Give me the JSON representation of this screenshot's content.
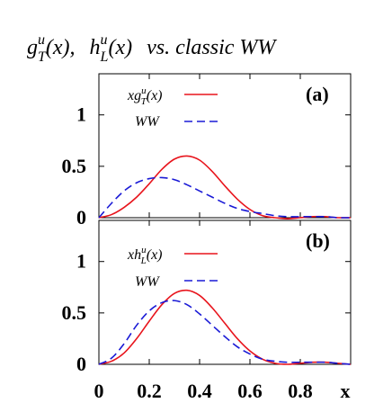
{
  "title": {
    "part1_base": "g",
    "part1_sup": "u",
    "part1_sub": "T",
    "part1_arg": "(x),",
    "part2_base": "h",
    "part2_sup": "u",
    "part2_sub": "L",
    "part2_arg": "(x)",
    "rest": "vs.  classic WW"
  },
  "colors": {
    "model": "#e8141c",
    "ww": "#1a1ad6",
    "axis": "#000000"
  },
  "chart_data": [
    {
      "type": "line",
      "panel_label": "(a)",
      "xlabel": "x",
      "xlim": [
        0,
        1.0
      ],
      "ylim": [
        0,
        1.4
      ],
      "x_ticks": [
        "0",
        "0.2",
        "0.4",
        "0.6",
        "0.8",
        "x"
      ],
      "y_ticks": [
        "0",
        "0.5",
        "1"
      ],
      "legend": {
        "position": "top-left"
      },
      "series": [
        {
          "name": "xg_T^u(x)",
          "legend_base": "xg",
          "legend_sup": "u",
          "legend_sub": "T",
          "legend_arg": "(x)",
          "color": "model",
          "style": "solid",
          "x": [
            0,
            0.05,
            0.1,
            0.15,
            0.2,
            0.25,
            0.3,
            0.35,
            0.4,
            0.45,
            0.5,
            0.55,
            0.6,
            0.65,
            0.7,
            0.75,
            0.8,
            0.85,
            0.9,
            0.95,
            1.0
          ],
          "y": [
            0,
            0.03,
            0.1,
            0.2,
            0.33,
            0.47,
            0.57,
            0.6,
            0.56,
            0.45,
            0.31,
            0.18,
            0.08,
            0.02,
            0.0,
            -0.01,
            0.0,
            0.01,
            0.01,
            0.0,
            0.0
          ]
        },
        {
          "name": "WW",
          "legend_base": "WW",
          "legend_sup": "",
          "legend_sub": "",
          "legend_arg": "",
          "color": "ww",
          "style": "dashed",
          "x": [
            0,
            0.05,
            0.1,
            0.15,
            0.2,
            0.25,
            0.3,
            0.35,
            0.4,
            0.45,
            0.5,
            0.55,
            0.6,
            0.65,
            0.7,
            0.75,
            0.8,
            0.85,
            0.9,
            0.95,
            1.0
          ],
          "y": [
            0,
            0.14,
            0.26,
            0.34,
            0.38,
            0.39,
            0.37,
            0.32,
            0.26,
            0.2,
            0.14,
            0.09,
            0.06,
            0.04,
            0.02,
            0.01,
            0.01,
            0.01,
            0.01,
            0.0,
            0.0
          ]
        }
      ]
    },
    {
      "type": "line",
      "panel_label": "(b)",
      "xlabel": "x",
      "xlim": [
        0,
        1.0
      ],
      "ylim": [
        0,
        1.4
      ],
      "x_ticks": [
        "0",
        "0.2",
        "0.4",
        "0.6",
        "0.8",
        "x"
      ],
      "y_ticks": [
        "0",
        "0.5",
        "1"
      ],
      "legend": {
        "position": "top-left"
      },
      "series": [
        {
          "name": "xh_L^u(x)",
          "legend_base": "xh",
          "legend_sup": "u",
          "legend_sub": "L",
          "legend_arg": "(x)",
          "color": "model",
          "style": "solid",
          "x": [
            0,
            0.05,
            0.1,
            0.15,
            0.2,
            0.25,
            0.3,
            0.35,
            0.4,
            0.45,
            0.5,
            0.55,
            0.6,
            0.65,
            0.7,
            0.75,
            0.8,
            0.85,
            0.9,
            0.95,
            1.0
          ],
          "y": [
            0,
            0.03,
            0.11,
            0.25,
            0.42,
            0.58,
            0.69,
            0.72,
            0.67,
            0.55,
            0.4,
            0.25,
            0.13,
            0.05,
            0.01,
            0.0,
            0.01,
            0.02,
            0.02,
            0.01,
            0.0
          ]
        },
        {
          "name": "WW",
          "legend_base": "WW",
          "legend_sup": "",
          "legend_sub": "",
          "legend_arg": "",
          "color": "ww",
          "style": "dashed",
          "x": [
            0,
            0.05,
            0.1,
            0.15,
            0.2,
            0.25,
            0.3,
            0.35,
            0.4,
            0.45,
            0.5,
            0.55,
            0.6,
            0.65,
            0.7,
            0.75,
            0.8,
            0.85,
            0.9,
            0.95,
            1.0
          ],
          "y": [
            0,
            0.06,
            0.2,
            0.38,
            0.52,
            0.6,
            0.62,
            0.58,
            0.49,
            0.38,
            0.27,
            0.17,
            0.1,
            0.05,
            0.03,
            0.02,
            0.02,
            0.02,
            0.02,
            0.01,
            0.0
          ]
        }
      ]
    }
  ]
}
